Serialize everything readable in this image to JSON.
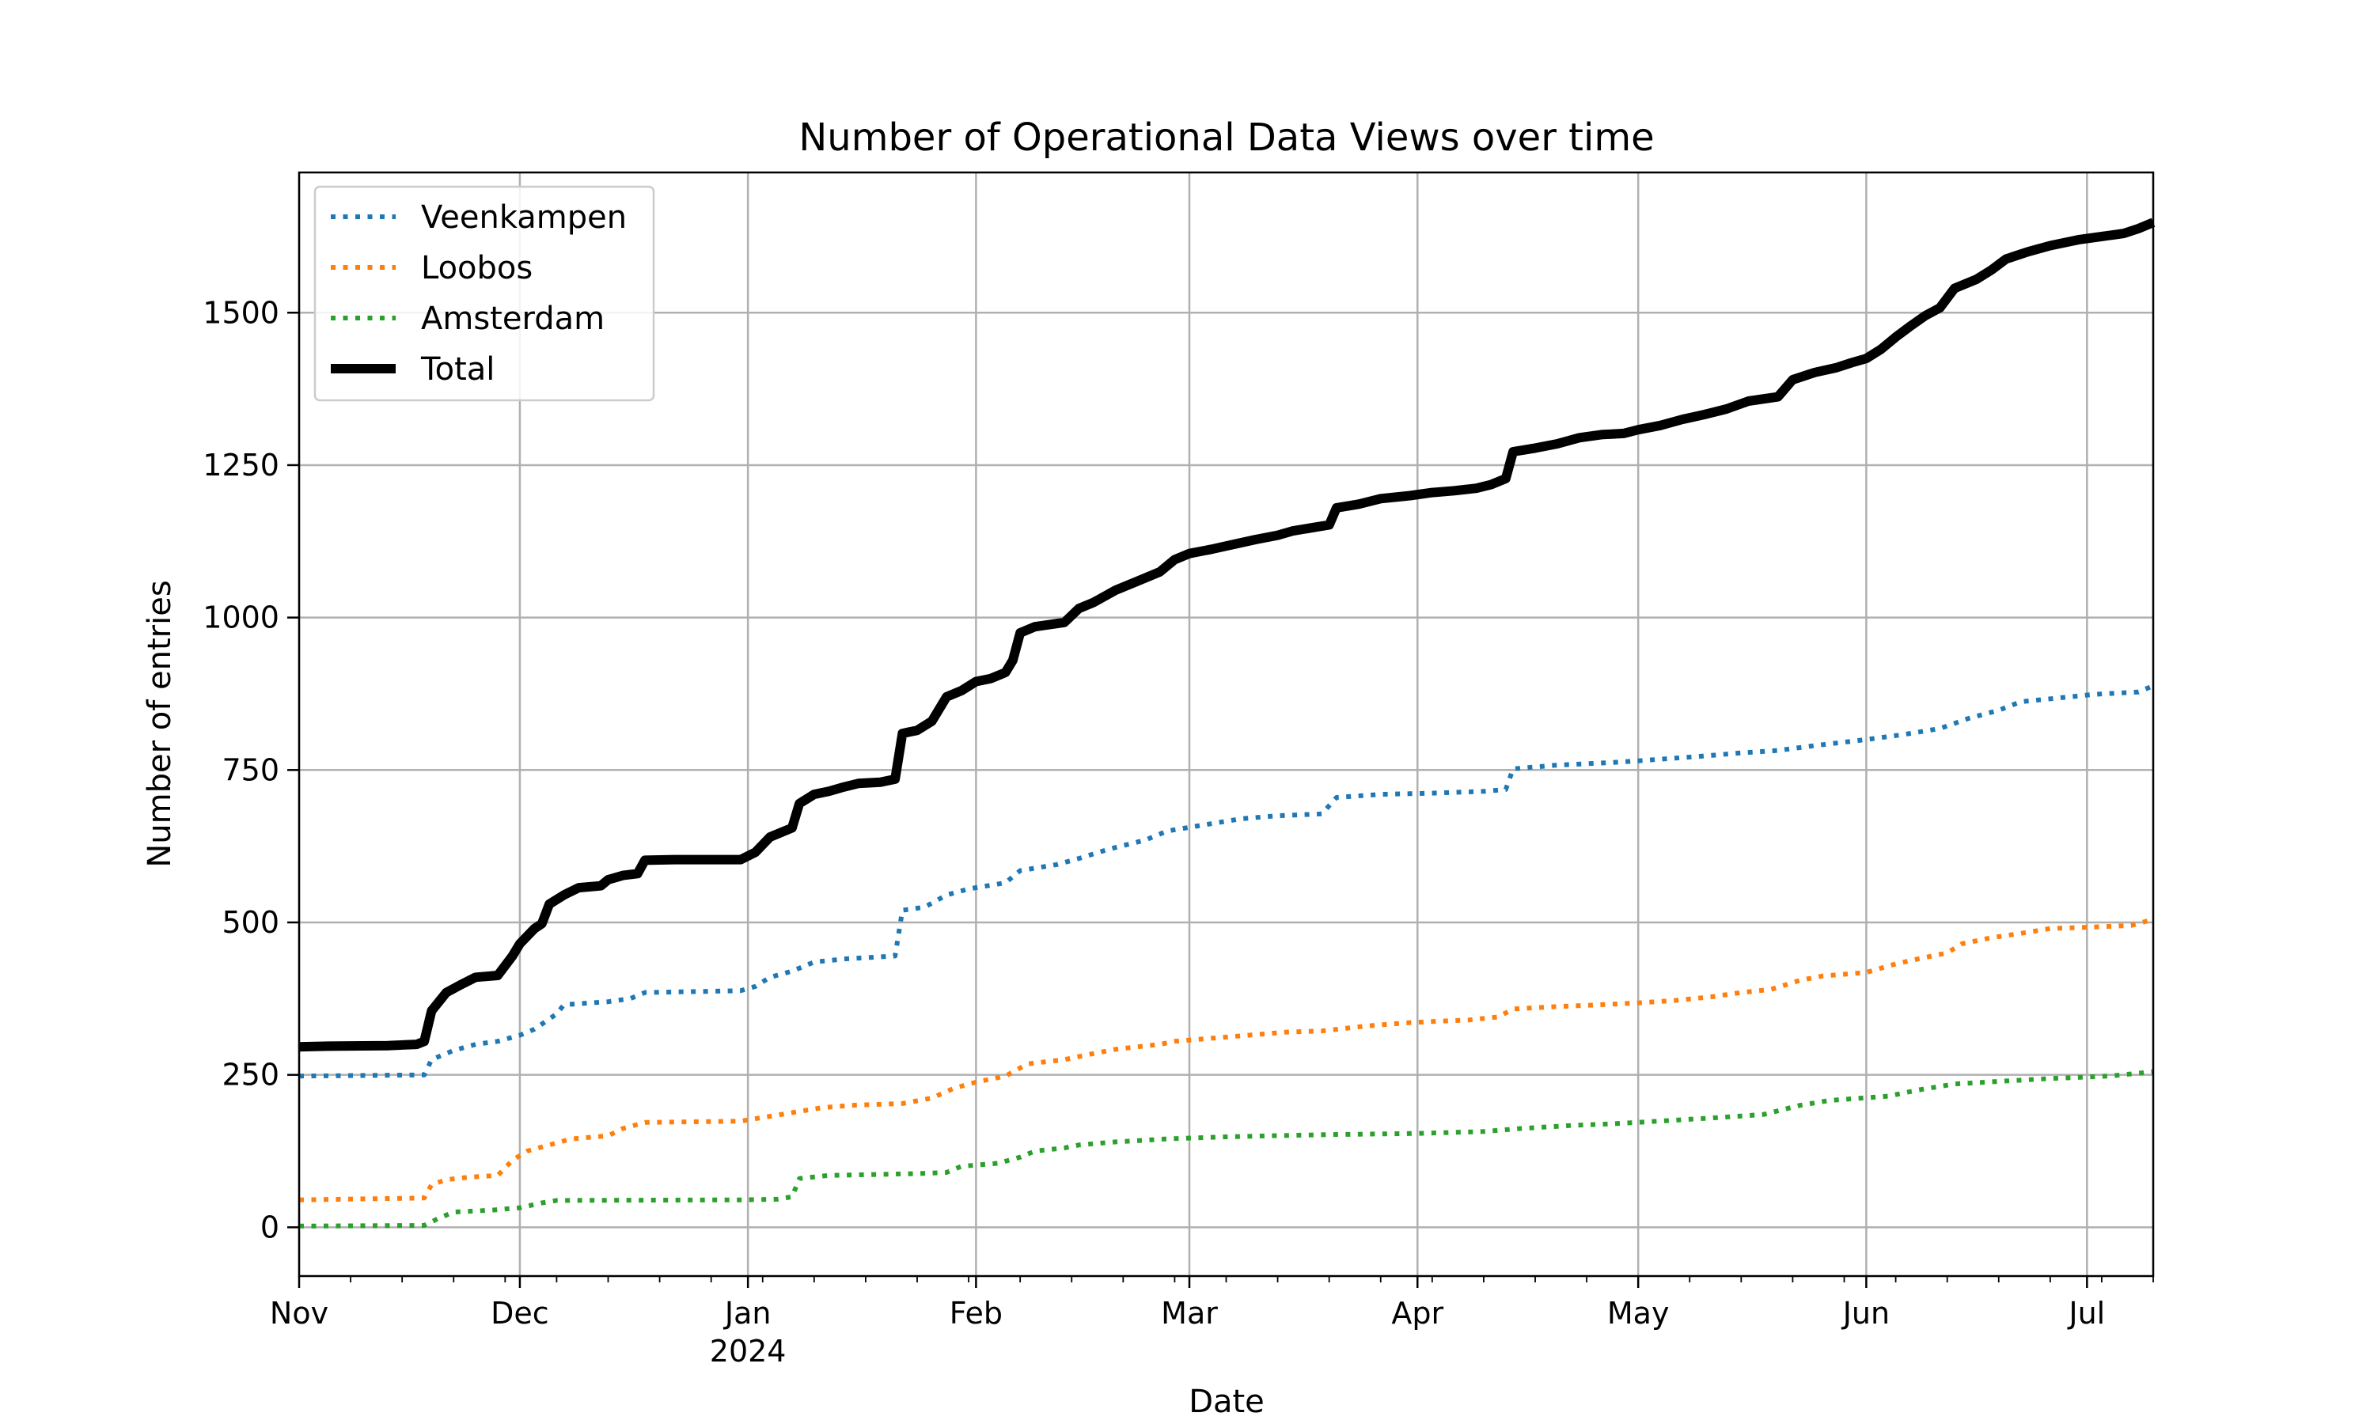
{
  "chart_data": {
    "type": "line",
    "title": "Number of Operational Data Views over time",
    "xlabel": "Date",
    "ylabel": "Number of entries",
    "grid": true,
    "legend_position": "upper-left",
    "x_range": [
      "2023-11-01",
      "2024-07-10"
    ],
    "y_range": [
      -80,
      1730
    ],
    "y_ticks": [
      0,
      250,
      500,
      750,
      1000,
      1250,
      1500
    ],
    "x_ticks": [
      {
        "date": "2023-11-01",
        "label": "Nov",
        "sublabel": ""
      },
      {
        "date": "2023-12-01",
        "label": "Dec",
        "sublabel": ""
      },
      {
        "date": "2024-01-01",
        "label": "Jan",
        "sublabel": "2024"
      },
      {
        "date": "2024-02-01",
        "label": "Feb",
        "sublabel": ""
      },
      {
        "date": "2024-03-01",
        "label": "Mar",
        "sublabel": ""
      },
      {
        "date": "2024-04-01",
        "label": "Apr",
        "sublabel": ""
      },
      {
        "date": "2024-05-01",
        "label": "May",
        "sublabel": ""
      },
      {
        "date": "2024-06-01",
        "label": "Jun",
        "sublabel": ""
      },
      {
        "date": "2024-07-01",
        "label": "Jul",
        "sublabel": ""
      }
    ],
    "series": [
      {
        "name": "Veenkampen",
        "color": "#1f77b4",
        "style": "dotted",
        "points": [
          [
            "2023-11-01",
            248
          ],
          [
            "2023-11-18",
            250
          ],
          [
            "2023-11-19",
            275
          ],
          [
            "2023-11-22",
            290
          ],
          [
            "2023-11-25",
            300
          ],
          [
            "2023-11-28",
            305
          ],
          [
            "2023-12-01",
            315
          ],
          [
            "2023-12-03",
            325
          ],
          [
            "2023-12-06",
            350
          ],
          [
            "2023-12-07",
            365
          ],
          [
            "2023-12-13",
            370
          ],
          [
            "2023-12-16",
            375
          ],
          [
            "2023-12-18",
            385
          ],
          [
            "2023-12-31",
            388
          ],
          [
            "2024-01-02",
            395
          ],
          [
            "2024-01-04",
            410
          ],
          [
            "2024-01-07",
            420
          ],
          [
            "2024-01-10",
            435
          ],
          [
            "2024-01-14",
            440
          ],
          [
            "2024-01-21",
            445
          ],
          [
            "2024-01-22",
            520
          ],
          [
            "2024-01-25",
            525
          ],
          [
            "2024-01-28",
            545
          ],
          [
            "2024-01-31",
            555
          ],
          [
            "2024-02-05",
            565
          ],
          [
            "2024-02-07",
            585
          ],
          [
            "2024-02-12",
            595
          ],
          [
            "2024-02-15",
            605
          ],
          [
            "2024-02-19",
            620
          ],
          [
            "2024-02-24",
            635
          ],
          [
            "2024-02-27",
            650
          ],
          [
            "2024-03-03",
            660
          ],
          [
            "2024-03-08",
            670
          ],
          [
            "2024-03-13",
            675
          ],
          [
            "2024-03-19",
            678
          ],
          [
            "2024-03-21",
            705
          ],
          [
            "2024-03-27",
            710
          ],
          [
            "2024-04-03",
            712
          ],
          [
            "2024-04-10",
            715
          ],
          [
            "2024-04-13",
            718
          ],
          [
            "2024-04-14",
            752
          ],
          [
            "2024-04-20",
            758
          ],
          [
            "2024-04-27",
            762
          ],
          [
            "2024-05-01",
            765
          ],
          [
            "2024-05-09",
            772
          ],
          [
            "2024-05-15",
            778
          ],
          [
            "2024-05-20",
            782
          ],
          [
            "2024-05-25",
            790
          ],
          [
            "2024-06-01",
            800
          ],
          [
            "2024-06-06",
            808
          ],
          [
            "2024-06-11",
            818
          ],
          [
            "2024-06-15",
            835
          ],
          [
            "2024-06-19",
            848
          ],
          [
            "2024-06-22",
            862
          ],
          [
            "2024-06-27",
            868
          ],
          [
            "2024-07-02",
            874
          ],
          [
            "2024-07-08",
            878
          ],
          [
            "2024-07-10",
            888
          ]
        ]
      },
      {
        "name": "Loobos",
        "color": "#ff7f0e",
        "style": "dotted",
        "points": [
          [
            "2023-11-01",
            45
          ],
          [
            "2023-11-18",
            48
          ],
          [
            "2023-11-19",
            70
          ],
          [
            "2023-11-21",
            78
          ],
          [
            "2023-11-24",
            82
          ],
          [
            "2023-11-28",
            85
          ],
          [
            "2023-11-30",
            110
          ],
          [
            "2023-12-02",
            125
          ],
          [
            "2023-12-05",
            135
          ],
          [
            "2023-12-08",
            145
          ],
          [
            "2023-12-13",
            150
          ],
          [
            "2023-12-15",
            162
          ],
          [
            "2023-12-18",
            172
          ],
          [
            "2023-12-31",
            174
          ],
          [
            "2024-01-03",
            180
          ],
          [
            "2024-01-07",
            188
          ],
          [
            "2024-01-11",
            196
          ],
          [
            "2024-01-15",
            200
          ],
          [
            "2024-01-22",
            203
          ],
          [
            "2024-01-26",
            212
          ],
          [
            "2024-01-29",
            228
          ],
          [
            "2024-02-01",
            238
          ],
          [
            "2024-02-05",
            248
          ],
          [
            "2024-02-08",
            268
          ],
          [
            "2024-02-13",
            275
          ],
          [
            "2024-02-17",
            285
          ],
          [
            "2024-02-20",
            292
          ],
          [
            "2024-02-26",
            300
          ],
          [
            "2024-02-28",
            305
          ],
          [
            "2024-03-04",
            310
          ],
          [
            "2024-03-09",
            315
          ],
          [
            "2024-03-14",
            320
          ],
          [
            "2024-03-19",
            322
          ],
          [
            "2024-03-25",
            330
          ],
          [
            "2024-03-30",
            335
          ],
          [
            "2024-04-04",
            338
          ],
          [
            "2024-04-08",
            340
          ],
          [
            "2024-04-12",
            345
          ],
          [
            "2024-04-14",
            358
          ],
          [
            "2024-04-20",
            362
          ],
          [
            "2024-04-26",
            365
          ],
          [
            "2024-05-01",
            368
          ],
          [
            "2024-05-06",
            372
          ],
          [
            "2024-05-11",
            378
          ],
          [
            "2024-05-15",
            385
          ],
          [
            "2024-05-19",
            390
          ],
          [
            "2024-05-23",
            405
          ],
          [
            "2024-05-26",
            412
          ],
          [
            "2024-06-01",
            418
          ],
          [
            "2024-06-05",
            432
          ],
          [
            "2024-06-08",
            440
          ],
          [
            "2024-06-12",
            450
          ],
          [
            "2024-06-14",
            465
          ],
          [
            "2024-06-18",
            475
          ],
          [
            "2024-06-22",
            482
          ],
          [
            "2024-06-26",
            490
          ],
          [
            "2024-07-01",
            492
          ],
          [
            "2024-07-07",
            495
          ],
          [
            "2024-07-10",
            505
          ]
        ]
      },
      {
        "name": "Amsterdam",
        "color": "#2ca02c",
        "style": "dotted",
        "points": [
          [
            "2023-11-01",
            2
          ],
          [
            "2023-11-18",
            3
          ],
          [
            "2023-11-20",
            15
          ],
          [
            "2023-11-22",
            25
          ],
          [
            "2023-11-27",
            28
          ],
          [
            "2023-12-01",
            32
          ],
          [
            "2023-12-04",
            40
          ],
          [
            "2023-12-06",
            44
          ],
          [
            "2023-12-31",
            45
          ],
          [
            "2024-01-05",
            46
          ],
          [
            "2024-01-07",
            50
          ],
          [
            "2024-01-08",
            80
          ],
          [
            "2024-01-12",
            85
          ],
          [
            "2024-01-24",
            88
          ],
          [
            "2024-01-28",
            90
          ],
          [
            "2024-01-30",
            100
          ],
          [
            "2024-02-04",
            105
          ],
          [
            "2024-02-07",
            115
          ],
          [
            "2024-02-09",
            125
          ],
          [
            "2024-02-13",
            130
          ],
          [
            "2024-02-15",
            135
          ],
          [
            "2024-02-20",
            140
          ],
          [
            "2024-02-27",
            145
          ],
          [
            "2024-03-05",
            148
          ],
          [
            "2024-03-12",
            150
          ],
          [
            "2024-03-20",
            152
          ],
          [
            "2024-04-01",
            154
          ],
          [
            "2024-04-10",
            157
          ],
          [
            "2024-04-15",
            162
          ],
          [
            "2024-04-22",
            167
          ],
          [
            "2024-04-28",
            170
          ],
          [
            "2024-05-05",
            175
          ],
          [
            "2024-05-12",
            180
          ],
          [
            "2024-05-18",
            185
          ],
          [
            "2024-05-23",
            200
          ],
          [
            "2024-05-27",
            208
          ],
          [
            "2024-06-04",
            215
          ],
          [
            "2024-06-08",
            225
          ],
          [
            "2024-06-13",
            235
          ],
          [
            "2024-06-20",
            240
          ],
          [
            "2024-06-26",
            244
          ],
          [
            "2024-07-04",
            248
          ],
          [
            "2024-07-10",
            255
          ]
        ]
      },
      {
        "name": "Total",
        "color": "#000000",
        "style": "solid",
        "points": [
          [
            "2023-11-01",
            296
          ],
          [
            "2023-11-05",
            297
          ],
          [
            "2023-11-13",
            298
          ],
          [
            "2023-11-17",
            300
          ],
          [
            "2023-11-18",
            305
          ],
          [
            "2023-11-19",
            355
          ],
          [
            "2023-11-21",
            385
          ],
          [
            "2023-11-23",
            398
          ],
          [
            "2023-11-25",
            410
          ],
          [
            "2023-11-28",
            413
          ],
          [
            "2023-11-30",
            445
          ],
          [
            "2023-12-01",
            465
          ],
          [
            "2023-12-03",
            490
          ],
          [
            "2023-12-04",
            498
          ],
          [
            "2023-12-05",
            530
          ],
          [
            "2023-12-07",
            545
          ],
          [
            "2023-12-09",
            557
          ],
          [
            "2023-12-12",
            560
          ],
          [
            "2023-12-13",
            570
          ],
          [
            "2023-12-15",
            577
          ],
          [
            "2023-12-17",
            580
          ],
          [
            "2023-12-18",
            602
          ],
          [
            "2023-12-22",
            603
          ],
          [
            "2023-12-31",
            603
          ],
          [
            "2024-01-02",
            615
          ],
          [
            "2024-01-04",
            640
          ],
          [
            "2024-01-07",
            655
          ],
          [
            "2024-01-08",
            695
          ],
          [
            "2024-01-10",
            710
          ],
          [
            "2024-01-12",
            715
          ],
          [
            "2024-01-14",
            722
          ],
          [
            "2024-01-16",
            728
          ],
          [
            "2024-01-19",
            730
          ],
          [
            "2024-01-21",
            735
          ],
          [
            "2024-01-22",
            810
          ],
          [
            "2024-01-24",
            815
          ],
          [
            "2024-01-26",
            830
          ],
          [
            "2024-01-28",
            870
          ],
          [
            "2024-01-30",
            880
          ],
          [
            "2024-02-01",
            895
          ],
          [
            "2024-02-03",
            900
          ],
          [
            "2024-02-05",
            910
          ],
          [
            "2024-02-06",
            930
          ],
          [
            "2024-02-07",
            975
          ],
          [
            "2024-02-09",
            985
          ],
          [
            "2024-02-13",
            992
          ],
          [
            "2024-02-15",
            1015
          ],
          [
            "2024-02-17",
            1025
          ],
          [
            "2024-02-20",
            1045
          ],
          [
            "2024-02-23",
            1060
          ],
          [
            "2024-02-26",
            1075
          ],
          [
            "2024-02-28",
            1095
          ],
          [
            "2024-03-01",
            1105
          ],
          [
            "2024-03-04",
            1112
          ],
          [
            "2024-03-07",
            1120
          ],
          [
            "2024-03-10",
            1128
          ],
          [
            "2024-03-13",
            1135
          ],
          [
            "2024-03-15",
            1142
          ],
          [
            "2024-03-18",
            1148
          ],
          [
            "2024-03-20",
            1152
          ],
          [
            "2024-03-21",
            1180
          ],
          [
            "2024-03-24",
            1186
          ],
          [
            "2024-03-27",
            1195
          ],
          [
            "2024-03-31",
            1200
          ],
          [
            "2024-04-03",
            1205
          ],
          [
            "2024-04-06",
            1208
          ],
          [
            "2024-04-09",
            1212
          ],
          [
            "2024-04-11",
            1218
          ],
          [
            "2024-04-13",
            1228
          ],
          [
            "2024-04-14",
            1272
          ],
          [
            "2024-04-17",
            1278
          ],
          [
            "2024-04-20",
            1285
          ],
          [
            "2024-04-23",
            1295
          ],
          [
            "2024-04-26",
            1300
          ],
          [
            "2024-04-29",
            1302
          ],
          [
            "2024-05-01",
            1308
          ],
          [
            "2024-05-04",
            1315
          ],
          [
            "2024-05-07",
            1325
          ],
          [
            "2024-05-10",
            1333
          ],
          [
            "2024-05-13",
            1342
          ],
          [
            "2024-05-16",
            1355
          ],
          [
            "2024-05-20",
            1362
          ],
          [
            "2024-05-22",
            1390
          ],
          [
            "2024-05-25",
            1402
          ],
          [
            "2024-05-28",
            1410
          ],
          [
            "2024-05-30",
            1418
          ],
          [
            "2024-06-01",
            1425
          ],
          [
            "2024-06-03",
            1440
          ],
          [
            "2024-06-05",
            1460
          ],
          [
            "2024-06-07",
            1478
          ],
          [
            "2024-06-09",
            1495
          ],
          [
            "2024-06-11",
            1508
          ],
          [
            "2024-06-13",
            1540
          ],
          [
            "2024-06-16",
            1555
          ],
          [
            "2024-06-18",
            1570
          ],
          [
            "2024-06-20",
            1588
          ],
          [
            "2024-06-23",
            1600
          ],
          [
            "2024-06-26",
            1610
          ],
          [
            "2024-06-30",
            1620
          ],
          [
            "2024-07-03",
            1625
          ],
          [
            "2024-07-06",
            1630
          ],
          [
            "2024-07-08",
            1638
          ],
          [
            "2024-07-10",
            1648
          ]
        ]
      }
    ]
  }
}
